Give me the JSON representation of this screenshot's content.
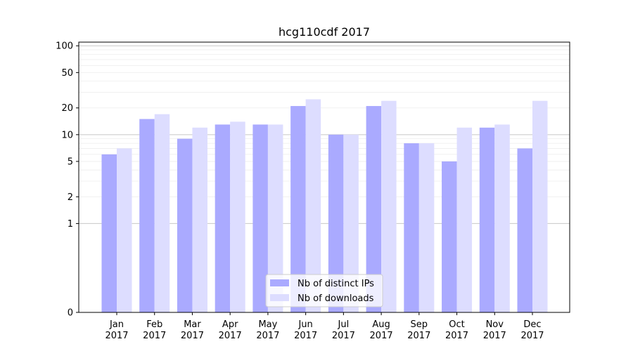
{
  "chart_data": {
    "type": "bar",
    "title": "hcg110cdf 2017",
    "xlabel": "",
    "ylabel": "",
    "yscale": "symlog",
    "ylim": [
      0,
      110
    ],
    "y_ticks": [
      0,
      1,
      2,
      5,
      10,
      20,
      50,
      100
    ],
    "y_tick_labels": [
      "0",
      "1",
      "2",
      "5",
      "10",
      "20",
      "50",
      "100"
    ],
    "grid": true,
    "legend_position": "bottom-center",
    "categories": [
      {
        "month": "Jan",
        "year": "2017"
      },
      {
        "month": "Feb",
        "year": "2017"
      },
      {
        "month": "Mar",
        "year": "2017"
      },
      {
        "month": "Apr",
        "year": "2017"
      },
      {
        "month": "May",
        "year": "2017"
      },
      {
        "month": "Jun",
        "year": "2017"
      },
      {
        "month": "Jul",
        "year": "2017"
      },
      {
        "month": "Aug",
        "year": "2017"
      },
      {
        "month": "Sep",
        "year": "2017"
      },
      {
        "month": "Oct",
        "year": "2017"
      },
      {
        "month": "Nov",
        "year": "2017"
      },
      {
        "month": "Dec",
        "year": "2017"
      }
    ],
    "series": [
      {
        "name": "Nb of distinct IPs",
        "color": "#aaaaff",
        "values": [
          6,
          15,
          9,
          13,
          13,
          21,
          10,
          21,
          8,
          5,
          12,
          7
        ]
      },
      {
        "name": "Nb of downloads",
        "color": "#ddddff",
        "values": [
          7,
          17,
          12,
          14,
          13,
          25,
          10,
          24,
          8,
          12,
          13,
          24
        ]
      }
    ]
  }
}
